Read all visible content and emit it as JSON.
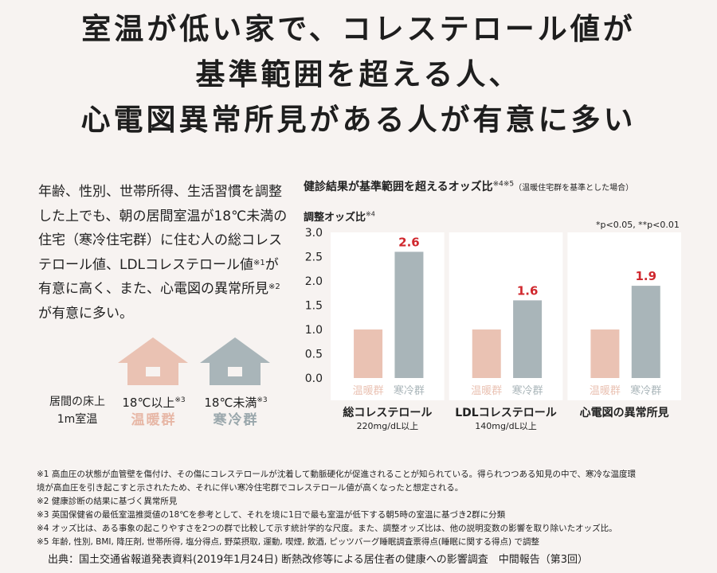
{
  "headline": {
    "line1": "室温が低い家で、コレステロール値が",
    "line2": "基準範囲を超える人、",
    "line3": "心電図異常所見がある人が有意に多い"
  },
  "description": {
    "part1": "年齢、性別、世帯所得、生活習慣を調整した上でも、朝の居間室温が18℃未満の住宅（寒冷住宅群）に住む人の総コレステロール値、LDLコレステロール値",
    "note1": "※1",
    "part2": "が有意に高く、また、心電図の異常所見",
    "note2": "※2",
    "part3": "が有意に多い。"
  },
  "houses": {
    "row_label_1": "居間の床上",
    "row_label_2": "1m室温",
    "warm_temp": "18℃以上",
    "warm_note": "※3",
    "warm_name": "温暖群",
    "cold_temp": "18℃未満",
    "cold_note": "※3",
    "cold_name": "寒冷群",
    "warm_color": "#eac2b3",
    "cold_color": "#a9b5b9"
  },
  "chart_data": {
    "type": "bar",
    "title": "健診結果が基準範囲を超えるオッズ比",
    "title_note": "※4※5",
    "title_sub": "（温暖住宅群を基準とした場合）",
    "ylabel": "調整オッズ比",
    "ylabel_note": "※4",
    "significance": "*p<0.05, **p<0.01",
    "ylim": [
      0,
      3.0
    ],
    "yticks": [
      "0.0",
      "0.5",
      "1.0",
      "1.5",
      "2.0",
      "2.5",
      "3.0"
    ],
    "grid": false,
    "groups": [
      {
        "category": "総コレステロール",
        "sub": "220mg/dL以上",
        "values": [
          1.0,
          2.6
        ],
        "label": "2.6"
      },
      {
        "category": "LDLコレステロール",
        "sub": "140mg/dL以上",
        "values": [
          1.0,
          1.6
        ],
        "label": "1.6"
      },
      {
        "category": "心電図の異常所見",
        "sub": "",
        "values": [
          1.0,
          1.9
        ],
        "label": "1.9"
      }
    ],
    "series": [
      {
        "name": "温暖群",
        "color": "#eac2b3"
      },
      {
        "name": "寒冷群",
        "color": "#a9b5b9"
      }
    ],
    "label_color": "#d0282e"
  },
  "footnotes": {
    "n1a": "※1 高血圧の状態が血管壁を傷付け、その傷にコレステロールが沈着して動脈硬化が促進されることが知られている。得られつつある知見の中で、寒冷な温度環",
    "n1b": "境が高血圧を引き起こすと示されたため、それに伴い寒冷住宅群でコレステロール値が高くなったと想定される。",
    "n2": "※2 健康診断の結果に基づく異常所見",
    "n3": "※3 英国保健省の最低室温推奨値の18℃を参考として、それを境に1日で最も室温が低下する朝5時の室温に基づき2群に分類",
    "n4": "※4 オッズ比は、ある事象の起こりやすさを2つの群で比較して示す統計学的な尺度。また、調整オッズ比は、他の説明変数の影響を取り除いたオッズ比。",
    "n5": "※5 年齢, 性別, BMI, 降圧剤, 世帯所得, 塩分得点, 野菜摂取, 運動, 喫煙, 飲酒, ピッツバーグ睡眠調査票得点(睡眠に関する得点) で調整"
  },
  "source": "出典：国土交通省報道発表資料(2019年1月24日) 断熱改修等による居住者の健康への影響調査　中間報告（第3回）"
}
